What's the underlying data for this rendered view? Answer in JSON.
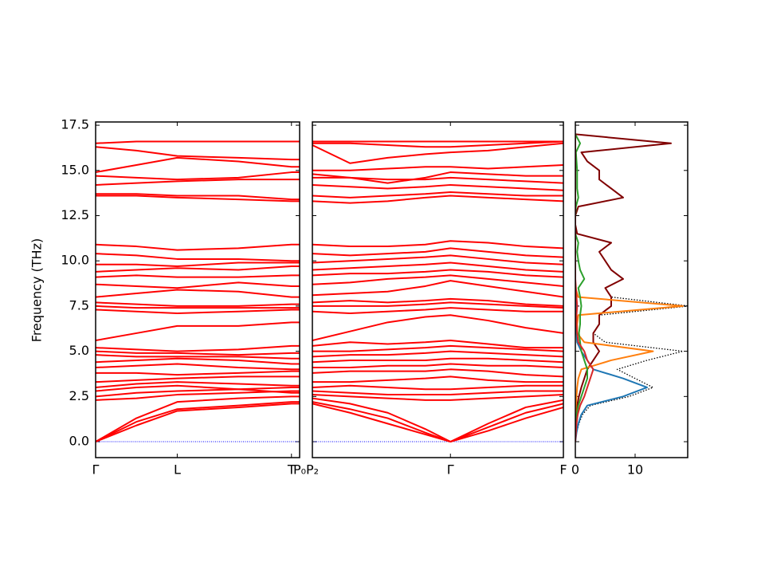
{
  "chart_data": [
    {
      "type": "line",
      "ylabel": "Frequency (THz)",
      "color": "#ff0000",
      "hline": 0,
      "hline_color": "#0000ff",
      "xlim": [
        0,
        1
      ],
      "ylim": [
        -0.88,
        17.68
      ],
      "xticks": [
        {
          "value": 0,
          "label": "Γ"
        },
        {
          "value": 0.4,
          "label": "L"
        },
        {
          "value": 0.96,
          "label": "T"
        },
        {
          "value": 1,
          "label": "P₀"
        }
      ],
      "yticks": [
        {
          "value": 0,
          "label": "0.0"
        },
        2.5,
        {
          "value": 5,
          "label": "5.0"
        },
        7.5,
        {
          "value": 10,
          "label": "10.0"
        },
        12.5,
        {
          "value": 15,
          "label": "15.0"
        },
        17.5
      ],
      "x": [
        0,
        0.2,
        0.4,
        0.7,
        0.96,
        1.0
      ],
      "series": [
        {
          "values": [
            0,
            0.9,
            1.7,
            1.9,
            2.1,
            2.1
          ]
        },
        {
          "values": [
            0,
            1.1,
            1.8,
            2.0,
            2.2,
            2.2
          ]
        },
        {
          "values": [
            0,
            1.3,
            2.2,
            2.4,
            2.5,
            2.5
          ]
        },
        {
          "values": [
            2.3,
            2.4,
            2.6,
            2.7,
            2.8,
            2.8
          ]
        },
        {
          "values": [
            2.5,
            2.7,
            2.8,
            2.9,
            3.0,
            3.0
          ]
        },
        {
          "values": [
            2.8,
            3.0,
            3.1,
            2.9,
            2.7,
            2.7
          ]
        },
        {
          "values": [
            3.0,
            3.2,
            3.3,
            3.2,
            3.1,
            3.1
          ]
        },
        {
          "values": [
            3.3,
            3.4,
            3.5,
            3.6,
            3.6,
            3.6
          ]
        },
        {
          "values": [
            3.8,
            3.8,
            3.7,
            3.8,
            3.9,
            3.9
          ]
        },
        {
          "values": [
            4.1,
            4.2,
            4.3,
            4.1,
            4.0,
            4.0
          ]
        },
        {
          "values": [
            4.4,
            4.5,
            4.6,
            4.5,
            4.3,
            4.3
          ]
        },
        {
          "values": [
            4.8,
            4.7,
            4.7,
            4.7,
            4.6,
            4.6
          ]
        },
        {
          "values": [
            5.0,
            4.9,
            4.9,
            4.8,
            4.9,
            4.9
          ]
        },
        {
          "values": [
            5.2,
            5.1,
            5.0,
            5.1,
            5.3,
            5.3
          ]
        },
        {
          "values": [
            5.6,
            6.0,
            6.4,
            6.4,
            6.6,
            6.6
          ]
        },
        {
          "values": [
            7.3,
            7.2,
            7.1,
            7.2,
            7.3,
            7.3
          ]
        },
        {
          "values": [
            7.5,
            7.4,
            7.4,
            7.4,
            7.4,
            7.4
          ]
        },
        {
          "values": [
            7.7,
            7.6,
            7.5,
            7.5,
            7.6,
            7.6
          ]
        },
        {
          "values": [
            8.0,
            8.2,
            8.4,
            8.3,
            8.0,
            8.0
          ]
        },
        {
          "values": [
            8.7,
            8.6,
            8.5,
            8.8,
            8.6,
            8.6
          ]
        },
        {
          "values": [
            9.1,
            9.2,
            9.1,
            9.1,
            9.2,
            9.2
          ]
        },
        {
          "values": [
            9.4,
            9.5,
            9.6,
            9.5,
            9.7,
            9.7
          ]
        },
        {
          "values": [
            9.8,
            9.8,
            9.7,
            9.9,
            9.9,
            9.9
          ]
        },
        {
          "values": [
            10.4,
            10.3,
            10.1,
            10.1,
            10.0,
            10.0
          ]
        },
        {
          "values": [
            10.9,
            10.8,
            10.6,
            10.7,
            10.9,
            10.9
          ]
        },
        {
          "values": [
            13.6,
            13.6,
            13.5,
            13.4,
            13.3,
            13.3
          ]
        },
        {
          "values": [
            13.7,
            13.7,
            13.6,
            13.6,
            13.4,
            13.4
          ]
        },
        {
          "values": [
            14.2,
            14.3,
            14.4,
            14.5,
            14.5,
            14.5
          ]
        },
        {
          "values": [
            14.7,
            14.6,
            14.5,
            14.6,
            14.9,
            14.9
          ]
        },
        {
          "values": [
            14.9,
            15.3,
            15.7,
            15.5,
            15.2,
            15.2
          ]
        },
        {
          "values": [
            16.3,
            16.1,
            15.8,
            15.7,
            15.6,
            15.6
          ]
        },
        {
          "values": [
            16.5,
            16.6,
            16.6,
            16.6,
            16.6,
            16.6
          ]
        }
      ]
    },
    {
      "type": "line",
      "color": "#ff0000",
      "hline": 0,
      "hline_color": "#0000ff",
      "xlim": [
        0,
        1
      ],
      "ylim": [
        -0.88,
        17.68
      ],
      "xticks": [
        {
          "value": 0,
          "label": "P₂"
        },
        {
          "value": 0.55,
          "label": "Γ"
        },
        {
          "value": 1,
          "label": "F"
        }
      ],
      "x": [
        0,
        0.15,
        0.3,
        0.45,
        0.55,
        0.7,
        0.85,
        1.0
      ],
      "series": [
        {
          "values": [
            2.1,
            1.6,
            1.0,
            0.4,
            0,
            0.6,
            1.3,
            1.9
          ]
        },
        {
          "values": [
            2.2,
            1.8,
            1.3,
            0.5,
            0,
            0.8,
            1.6,
            2.1
          ]
        },
        {
          "values": [
            2.4,
            2.1,
            1.6,
            0.7,
            0,
            1.0,
            1.9,
            2.3
          ]
        },
        {
          "values": [
            2.6,
            2.5,
            2.4,
            2.3,
            2.3,
            2.4,
            2.5,
            2.6
          ]
        },
        {
          "values": [
            2.8,
            2.7,
            2.6,
            2.6,
            2.6,
            2.7,
            2.8,
            2.8
          ]
        },
        {
          "values": [
            3.0,
            3.1,
            3.0,
            2.9,
            2.9,
            3.0,
            3.1,
            3.1
          ]
        },
        {
          "values": [
            3.3,
            3.3,
            3.4,
            3.5,
            3.6,
            3.4,
            3.3,
            3.3
          ]
        },
        {
          "values": [
            3.8,
            3.9,
            3.9,
            3.9,
            4.0,
            3.9,
            3.7,
            3.6
          ]
        },
        {
          "values": [
            4.1,
            4.1,
            4.2,
            4.2,
            4.3,
            4.2,
            4.2,
            4.1
          ]
        },
        {
          "values": [
            4.4,
            4.5,
            4.5,
            4.5,
            4.6,
            4.6,
            4.5,
            4.4
          ]
        },
        {
          "values": [
            4.7,
            4.8,
            4.8,
            4.9,
            5.0,
            4.9,
            4.8,
            4.7
          ]
        },
        {
          "values": [
            5.0,
            5.0,
            5.1,
            5.2,
            5.3,
            5.2,
            5.1,
            5.0
          ]
        },
        {
          "values": [
            5.3,
            5.5,
            5.4,
            5.5,
            5.6,
            5.4,
            5.2,
            5.2
          ]
        },
        {
          "values": [
            5.6,
            6.1,
            6.6,
            6.9,
            7.0,
            6.7,
            6.3,
            6.0
          ]
        },
        {
          "values": [
            7.2,
            7.1,
            7.2,
            7.3,
            7.4,
            7.3,
            7.2,
            7.2
          ]
        },
        {
          "values": [
            7.5,
            7.5,
            7.5,
            7.6,
            7.7,
            7.6,
            7.5,
            7.4
          ]
        },
        {
          "values": [
            7.7,
            7.8,
            7.7,
            7.8,
            7.9,
            7.8,
            7.6,
            7.5
          ]
        },
        {
          "values": [
            8.1,
            8.2,
            8.3,
            8.6,
            8.9,
            8.6,
            8.3,
            8.0
          ]
        },
        {
          "values": [
            8.7,
            8.8,
            9.0,
            9.1,
            9.2,
            9.0,
            8.8,
            8.6
          ]
        },
        {
          "values": [
            9.2,
            9.3,
            9.3,
            9.4,
            9.5,
            9.4,
            9.2,
            9.1
          ]
        },
        {
          "values": [
            9.5,
            9.6,
            9.7,
            9.8,
            9.9,
            9.7,
            9.5,
            9.4
          ]
        },
        {
          "values": [
            9.9,
            10.0,
            10.1,
            10.2,
            10.3,
            10.1,
            9.9,
            9.8
          ]
        },
        {
          "values": [
            10.4,
            10.3,
            10.4,
            10.5,
            10.7,
            10.5,
            10.3,
            10.2
          ]
        },
        {
          "values": [
            10.9,
            10.8,
            10.8,
            10.9,
            11.1,
            11.0,
            10.8,
            10.7
          ]
        },
        {
          "values": [
            13.3,
            13.2,
            13.3,
            13.5,
            13.6,
            13.5,
            13.4,
            13.3
          ]
        },
        {
          "values": [
            13.6,
            13.5,
            13.6,
            13.7,
            13.8,
            13.7,
            13.6,
            13.6
          ]
        },
        {
          "values": [
            14.2,
            14.1,
            14.0,
            14.1,
            14.2,
            14.1,
            14.0,
            13.9
          ]
        },
        {
          "values": [
            14.6,
            14.6,
            14.5,
            14.5,
            14.6,
            14.5,
            14.4,
            14.3
          ]
        },
        {
          "values": [
            14.8,
            14.6,
            14.3,
            14.6,
            14.9,
            14.8,
            14.7,
            14.7
          ]
        },
        {
          "values": [
            15.0,
            15.0,
            15.1,
            15.2,
            15.2,
            15.1,
            15.2,
            15.3
          ]
        },
        {
          "values": [
            16.4,
            15.4,
            15.7,
            15.9,
            16.0,
            16.1,
            16.3,
            16.5
          ]
        },
        {
          "values": [
            16.5,
            16.5,
            16.4,
            16.3,
            16.3,
            16.4,
            16.5,
            16.6
          ]
        },
        {
          "values": [
            16.6,
            16.6,
            16.6,
            16.6,
            16.6,
            16.6,
            16.6,
            16.6
          ]
        }
      ]
    },
    {
      "type": "line",
      "orientation": "horizontal",
      "xlim": [
        0,
        18.8
      ],
      "ylim": [
        -0.88,
        17.68
      ],
      "xticks": [
        0,
        10
      ],
      "y": [
        0,
        0.5,
        1,
        1.5,
        2,
        2.5,
        3,
        3.5,
        4,
        4.5,
        5,
        5.5,
        6,
        6.5,
        7,
        7.5,
        8,
        8.5,
        9,
        9.5,
        10,
        10.5,
        11,
        11.5,
        12,
        12.5,
        13,
        13.5,
        14,
        14.5,
        15,
        15.5,
        16,
        16.5,
        17
      ],
      "series": [
        {
          "color": "#000000",
          "linestyle": "dotted",
          "values": [
            0,
            0.2,
            0.6,
            1.2,
            2.5,
            9,
            13,
            10,
            7,
            12,
            18,
            5,
            3,
            4,
            4,
            19,
            6,
            5,
            8,
            6,
            5,
            4,
            6,
            0.3,
            0,
            0,
            0.5,
            8,
            6,
            4,
            4,
            2,
            1,
            16,
            0
          ]
        },
        {
          "color": "#800000",
          "values": [
            0,
            0,
            0,
            0.1,
            0.3,
            0.6,
            1,
            1.5,
            2,
            3,
            4,
            3,
            3,
            4,
            4,
            6,
            6,
            5,
            8,
            6,
            5,
            4,
            6,
            0.3,
            0,
            0,
            0.5,
            8,
            6,
            4,
            4,
            2,
            1,
            16,
            0
          ]
        },
        {
          "color": "#1f77b4",
          "values": [
            0,
            0.2,
            0.5,
            1,
            2,
            8,
            12,
            8,
            3,
            2,
            1,
            0.3,
            0.2,
            0,
            0,
            0.2,
            0,
            0,
            0,
            0,
            0,
            0,
            0,
            0,
            0,
            0,
            0,
            0,
            0,
            0,
            0,
            0,
            0,
            0,
            0
          ]
        },
        {
          "color": "#ff7f0e",
          "values": [
            0,
            0,
            0,
            0,
            0.1,
            0.2,
            0.3,
            0.5,
            1,
            6,
            13,
            1.5,
            0.3,
            0.3,
            0.5,
            18,
            0.5,
            0,
            0,
            0,
            0,
            0,
            0,
            0,
            0,
            0,
            0,
            0,
            0,
            0,
            0,
            0,
            0,
            0,
            0
          ]
        },
        {
          "color": "#2ca02c",
          "values": [
            0,
            0,
            0.1,
            0.2,
            0.5,
            1,
            1.5,
            2,
            2,
            1.5,
            1,
            0.8,
            0.6,
            0.8,
            0.8,
            1,
            0.8,
            0.5,
            1.5,
            0.8,
            0.5,
            0.3,
            0.5,
            0,
            0,
            0,
            0.1,
            0.5,
            0.3,
            0.3,
            0.3,
            0.2,
            0.1,
            0.8,
            0
          ]
        },
        {
          "color": "#d62728",
          "values": [
            0,
            0.1,
            0.2,
            0.4,
            0.8,
            1.5,
            2,
            2.5,
            3,
            2,
            1.5,
            0.5,
            0.3,
            0.2,
            0.2,
            0.3,
            0.2,
            0.1,
            0,
            0,
            0,
            0,
            0,
            0,
            0,
            0,
            0,
            0,
            0,
            0,
            0,
            0,
            0,
            0,
            0
          ]
        }
      ]
    }
  ]
}
